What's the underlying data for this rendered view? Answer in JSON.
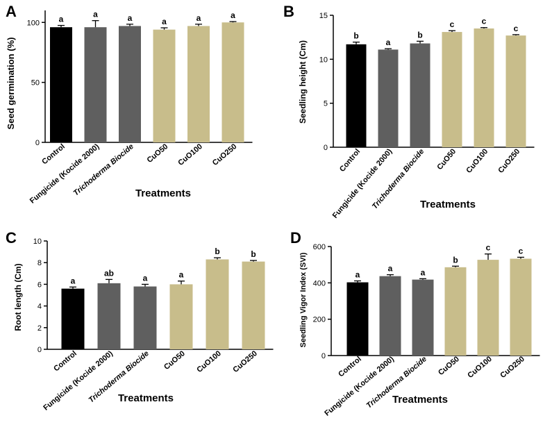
{
  "colors": {
    "control": "#000000",
    "grey": "#5f5f5f",
    "cuo": "#c8bd8b"
  },
  "chart_data": [
    {
      "type": "bar",
      "panel": "A",
      "ylabel": "Seed germination (%)",
      "xlabel": "Treatments",
      "ylim": [
        0,
        110
      ],
      "yticks": [
        0,
        50,
        100
      ],
      "categories": [
        "Control",
        "Fungicide (Kocide 2000)",
        "Trichoderma Biocide",
        "CuO50",
        "CuO100",
        "CuO250"
      ],
      "values": [
        96,
        96,
        97,
        94,
        97,
        100
      ],
      "errors": [
        1.5,
        5.5,
        1.5,
        1.5,
        1.5,
        0.7
      ],
      "letters": [
        "a",
        "a",
        "a",
        "a",
        "a",
        "a"
      ]
    },
    {
      "type": "bar",
      "panel": "B",
      "ylabel": "Seedling height (Cm)",
      "xlabel": "Treatments",
      "ylim": [
        0,
        15
      ],
      "yticks": [
        0,
        5,
        10,
        15
      ],
      "categories": [
        "Control",
        "Fungicide (Kocide 2000)",
        "Trichoderma Biocide",
        "CuO50",
        "CuO100",
        "CuO250"
      ],
      "values": [
        11.7,
        11.1,
        11.8,
        13.1,
        13.5,
        12.7
      ],
      "errors": [
        0.25,
        0.1,
        0.25,
        0.15,
        0.1,
        0.1
      ],
      "letters": [
        "b",
        "a",
        "b",
        "c",
        "c",
        "c"
      ]
    },
    {
      "type": "bar",
      "panel": "C",
      "ylabel": "Root length (Cm)",
      "xlabel": "Treatments",
      "ylim": [
        0,
        10
      ],
      "yticks": [
        0,
        2,
        4,
        6,
        8,
        10
      ],
      "categories": [
        "Control",
        "Fungicide (Kocide 2000)",
        "Trichoderma Biocide",
        "CuO50",
        "CuO100",
        "CuO250"
      ],
      "values": [
        5.6,
        6.1,
        5.8,
        6.0,
        8.3,
        8.1
      ],
      "errors": [
        0.15,
        0.35,
        0.2,
        0.3,
        0.15,
        0.1
      ],
      "letters": [
        "a",
        "ab",
        "a",
        "a",
        "b",
        "b"
      ]
    },
    {
      "type": "bar",
      "panel": "D",
      "ylabel": "Seedling Vigor Index (SVI)",
      "xlabel": "Treatments",
      "ylim": [
        0,
        600
      ],
      "yticks": [
        0,
        200,
        400,
        600
      ],
      "categories": [
        "Control",
        "Fungicide (Kocide 2000)",
        "Trichoderma Biocide",
        "CuO50",
        "CuO100",
        "CuO250"
      ],
      "values": [
        403,
        437,
        418,
        486,
        527,
        533
      ],
      "errors": [
        8,
        8,
        5,
        6,
        32,
        8
      ],
      "letters": [
        "a",
        "a",
        "a",
        "b",
        "c",
        "c"
      ]
    }
  ]
}
